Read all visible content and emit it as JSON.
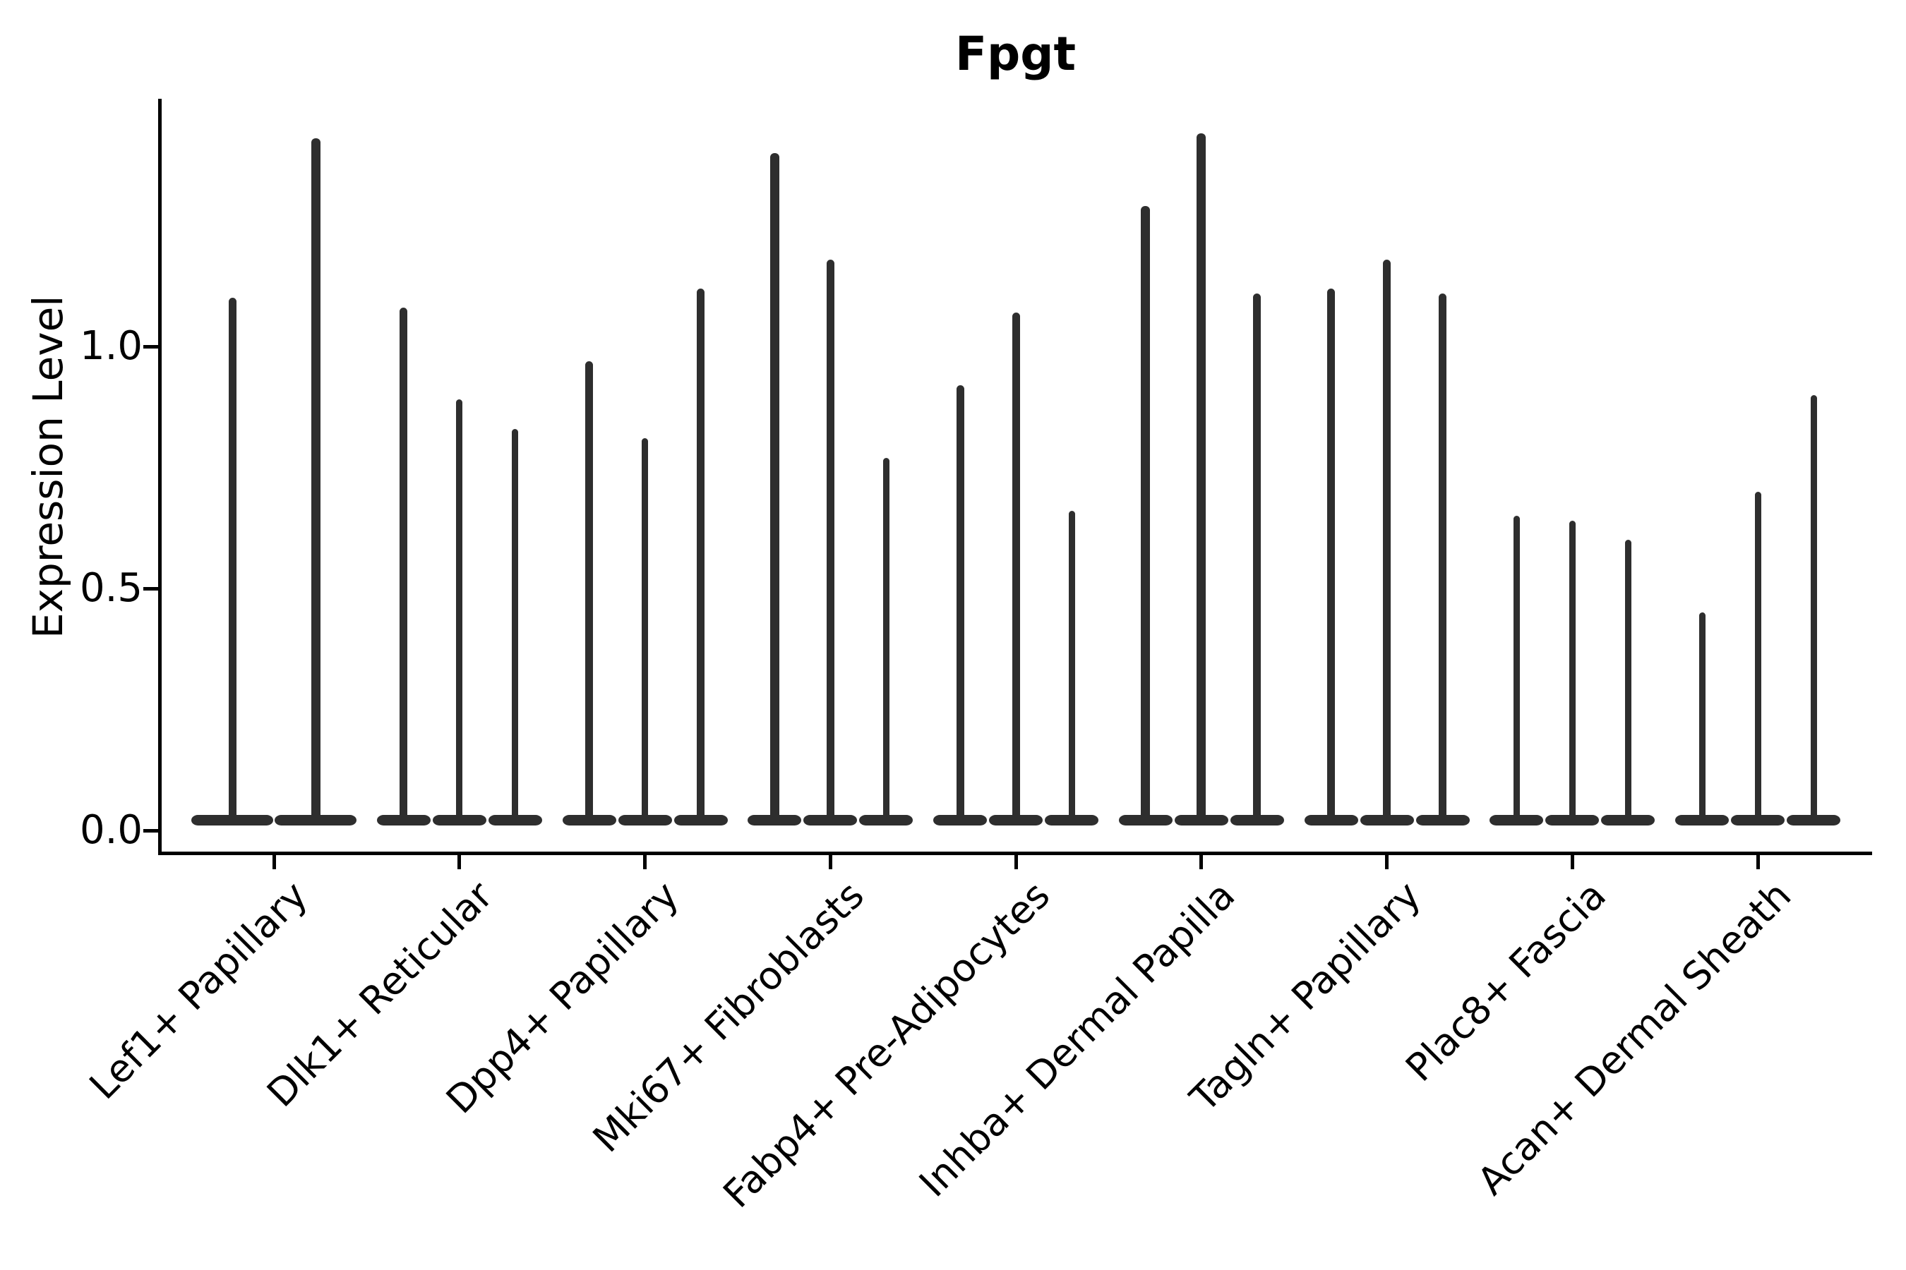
{
  "title": "Fpgt",
  "y_axis": {
    "label": "Expression Level",
    "tick_labels": [
      "0.0",
      "0.5",
      "1.0"
    ]
  },
  "chart_data": {
    "type": "violin",
    "title": "Fpgt",
    "xlabel": "",
    "ylabel": "Expression Level",
    "ylim": [
      0,
      1.51
    ],
    "yticks": [
      0.0,
      0.5,
      1.0
    ],
    "ytick_labels": [
      "0.0",
      "0.5",
      "1.0"
    ],
    "grid": false,
    "legend_position": "none",
    "orientation": "vertical",
    "baseline_value": 0.0,
    "categories": [
      "Lef1+ Papillary",
      "Dlk1+ Reticular",
      "Dpp4+ Papillary",
      "Mki67+ Fibroblasts",
      "Fabp4+ Pre-Adipocytes",
      "Inhba+ Dermal Papilla",
      "Tagln+ Papillary",
      "Plac8+ Fascia",
      "Acan+ Dermal Sheath"
    ],
    "groups": [
      {
        "category": "Lef1+ Papillary",
        "violin_max_values": [
          1.1,
          1.43
        ]
      },
      {
        "category": "Dlk1+ Reticular",
        "violin_max_values": [
          1.08,
          0.89,
          0.83
        ]
      },
      {
        "category": "Dpp4+ Papillary",
        "violin_max_values": [
          0.97,
          0.81,
          1.12
        ]
      },
      {
        "category": "Mki67+ Fibroblasts",
        "violin_max_values": [
          1.4,
          1.18,
          0.77
        ]
      },
      {
        "category": "Fabp4+ Pre-Adipocytes",
        "violin_max_values": [
          0.92,
          1.07,
          0.66
        ]
      },
      {
        "category": "Inhba+ Dermal Papilla",
        "violin_max_values": [
          1.29,
          1.44,
          1.11
        ]
      },
      {
        "category": "Tagln+ Papillary",
        "violin_max_values": [
          1.12,
          1.18,
          1.11
        ]
      },
      {
        "category": "Plac8+ Fascia",
        "violin_max_values": [
          0.65,
          0.64,
          0.6
        ]
      },
      {
        "category": "Acan+ Dermal Sheath",
        "violin_max_values": [
          0.45,
          0.7,
          0.9
        ]
      }
    ],
    "colors": {
      "mark": "#2e2e2e",
      "axis": "#000000",
      "background": "#ffffff"
    }
  }
}
